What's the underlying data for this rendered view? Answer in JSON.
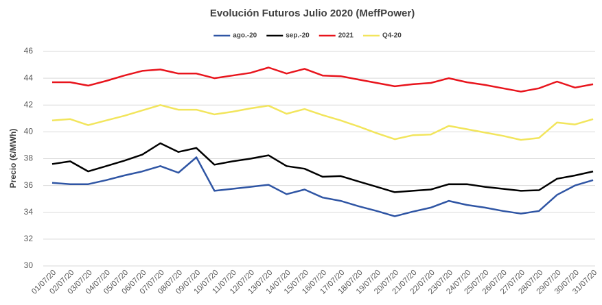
{
  "chart_data": {
    "type": "line",
    "title": "Evolución Futuros Julio 2020 (MeffPower)",
    "y_label": "Precio (€/MWh)",
    "categories": [
      "01/07/20",
      "02/07/20",
      "03/07/20",
      "04/07/20",
      "05/07/20",
      "06/07/20",
      "07/07/20",
      "08/07/20",
      "09/07/20",
      "10/07/20",
      "11/07/20",
      "12/07/20",
      "13/07/20",
      "14/07/20",
      "15/07/20",
      "16/07/20",
      "17/07/20",
      "18/07/20",
      "19/07/20",
      "20/07/20",
      "21/07/20",
      "22/07/20",
      "23/07/20",
      "24/07/20",
      "25/07/20",
      "26/07/20",
      "27/07/20",
      "28/07/20",
      "29/07/20",
      "30/07/20",
      "31/07/20"
    ],
    "series": [
      {
        "name": "ago.-20",
        "color": "#2f55a4",
        "values": [
          36.2,
          36.1,
          36.1,
          36.4,
          36.75,
          37.05,
          37.45,
          36.95,
          38.1,
          35.6,
          35.75,
          35.9,
          36.05,
          35.35,
          35.7,
          35.1,
          34.85,
          34.45,
          34.1,
          33.7,
          34.05,
          34.35,
          34.85,
          34.55,
          34.35,
          34.1,
          33.9,
          34.1,
          35.3,
          36.0,
          36.4
        ]
      },
      {
        "name": "sep.-20",
        "color": "#000000",
        "values": [
          37.6,
          37.8,
          37.05,
          37.45,
          37.85,
          38.3,
          39.15,
          38.5,
          38.8,
          37.55,
          37.8,
          38.0,
          38.25,
          37.45,
          37.25,
          36.65,
          36.7,
          36.3,
          35.9,
          35.5,
          35.6,
          35.7,
          36.1,
          36.1,
          35.9,
          35.75,
          35.6,
          35.65,
          36.5,
          36.75,
          37.05
        ]
      },
      {
        "name": "2021",
        "color": "#e8141c",
        "values": [
          43.7,
          43.7,
          43.45,
          43.8,
          44.2,
          44.55,
          44.65,
          44.35,
          44.35,
          44.0,
          44.2,
          44.4,
          44.8,
          44.35,
          44.7,
          44.2,
          44.15,
          43.9,
          43.65,
          43.4,
          43.55,
          43.65,
          44.0,
          43.7,
          43.5,
          43.25,
          43.0,
          43.25,
          43.75,
          43.3,
          43.55
        ]
      },
      {
        "name": "Q4-20",
        "color": "#f2e55c",
        "values": [
          40.85,
          40.95,
          40.5,
          40.85,
          41.2,
          41.6,
          42.0,
          41.65,
          41.65,
          41.3,
          41.5,
          41.75,
          41.95,
          41.35,
          41.7,
          41.25,
          40.85,
          40.4,
          39.9,
          39.45,
          39.75,
          39.8,
          40.45,
          40.2,
          39.95,
          39.7,
          39.4,
          39.55,
          40.7,
          40.55,
          40.95
        ]
      }
    ],
    "ylim": [
      30,
      46
    ],
    "yticks": [
      30,
      32,
      34,
      36,
      38,
      40,
      42,
      44,
      46
    ],
    "grid": true,
    "legend": "top"
  }
}
